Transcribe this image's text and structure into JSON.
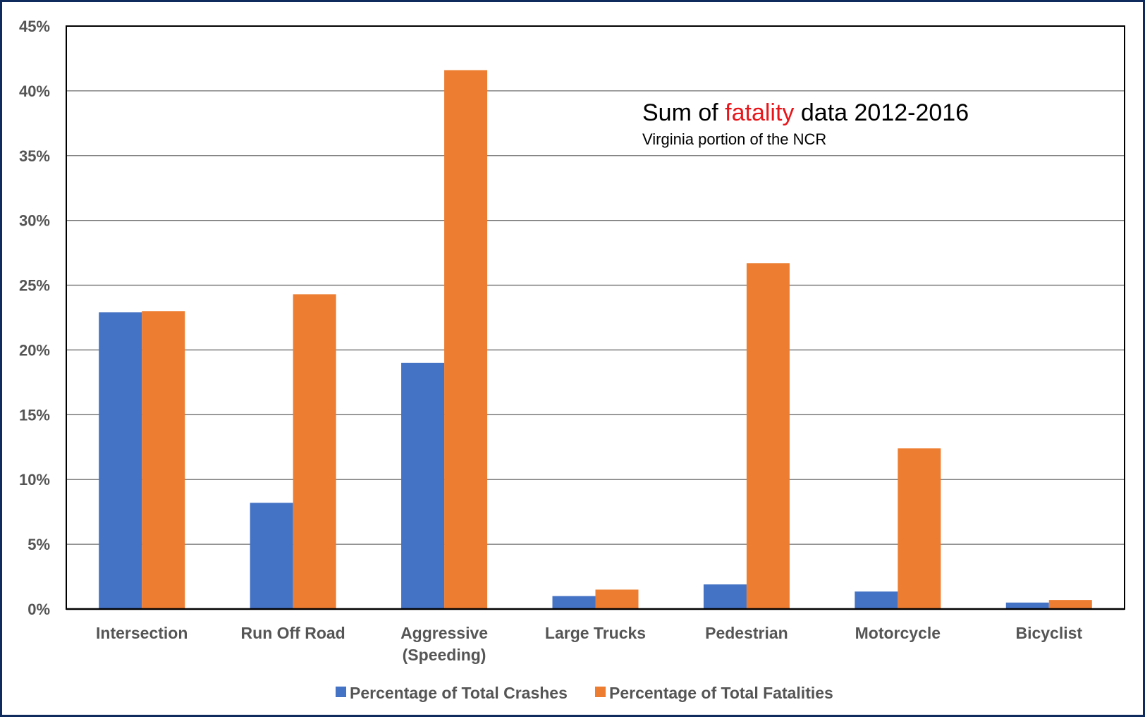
{
  "chart_data": {
    "type": "bar",
    "title": {
      "before": "Sum of ",
      "highlight": "fatality",
      "after": " data 2012-2016",
      "highlight_color": "#e8161b"
    },
    "subtitle": "Virginia portion of the NCR",
    "categories": [
      [
        "Intersection"
      ],
      [
        "Run Off Road"
      ],
      [
        "Aggressive",
        "(Speeding)"
      ],
      [
        "Large Trucks"
      ],
      [
        "Pedestrian"
      ],
      [
        "Motorcycle"
      ],
      [
        "Bicyclist"
      ]
    ],
    "series": [
      {
        "name": "Percentage of Total Crashes",
        "color": "#4472c4",
        "values": [
          22.9,
          8.2,
          19.0,
          1.0,
          1.9,
          1.35,
          0.5
        ]
      },
      {
        "name": "Percentage of Total Fatalities",
        "color": "#ed7d31",
        "values": [
          23.0,
          24.3,
          41.6,
          1.5,
          26.7,
          12.4,
          0.7
        ]
      }
    ],
    "ylim": [
      0,
      45
    ],
    "yticks": [
      0,
      5,
      10,
      15,
      20,
      25,
      30,
      35,
      40,
      45
    ],
    "ytick_labels": [
      "0%",
      "5%",
      "10%",
      "15%",
      "20%",
      "25%",
      "30%",
      "35%",
      "40%",
      "45%"
    ],
    "grid": true,
    "legend": "bottom"
  }
}
